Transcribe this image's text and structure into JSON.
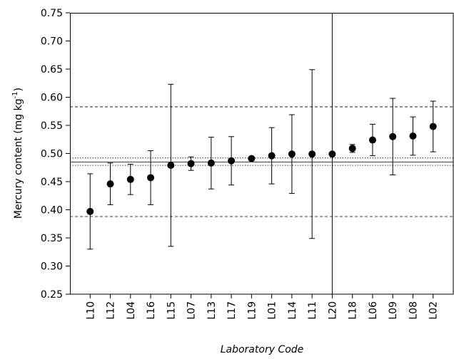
{
  "chart_data": {
    "type": "errorbar",
    "ylabel": {
      "text": "Mercury content (mg kg",
      "sup": "-1",
      "after": ")"
    },
    "xlabel": "Laboratory Code",
    "categories": [
      "L10",
      "L12",
      "L04",
      "L16",
      "L15",
      "L07",
      "L13",
      "L17",
      "L19",
      "L01",
      "L14",
      "L11",
      "L20",
      "L18",
      "L06",
      "L09",
      "L08",
      "L02"
    ],
    "values": [
      0.397,
      0.446,
      0.454,
      0.457,
      0.479,
      0.482,
      0.483,
      0.487,
      0.491,
      0.496,
      0.499,
      0.499,
      0.499,
      0.509,
      0.524,
      0.53,
      0.531,
      0.548
    ],
    "errors": [
      0.067,
      0.037,
      0.027,
      0.048,
      0.144,
      0.012,
      0.046,
      0.043,
      0.003,
      0.05,
      0.07,
      0.15,
      0.3,
      0.007,
      0.028,
      0.068,
      0.034,
      0.045
    ],
    "color": "#000000",
    "ylim": [
      0.25,
      0.75
    ],
    "yticks": [
      0.25,
      {
        "value": 0.3,
        "label": "0.30"
      },
      0.35,
      {
        "value": 0.4,
        "label": "0.40"
      },
      0.45,
      {
        "value": 0.5,
        "label": "0.50"
      },
      0.55,
      {
        "value": 0.6,
        "label": "0.60"
      },
      0.65,
      {
        "value": 0.7,
        "label": "0.70"
      },
      0.75
    ],
    "reference_lines": [
      {
        "value": 0.485,
        "style": "solid"
      },
      {
        "value": 0.492,
        "style": "dotted"
      },
      {
        "value": 0.479,
        "style": "dotted"
      },
      {
        "value": 0.583,
        "style": "dashed"
      },
      {
        "value": 0.388,
        "style": "dashed"
      }
    ]
  }
}
